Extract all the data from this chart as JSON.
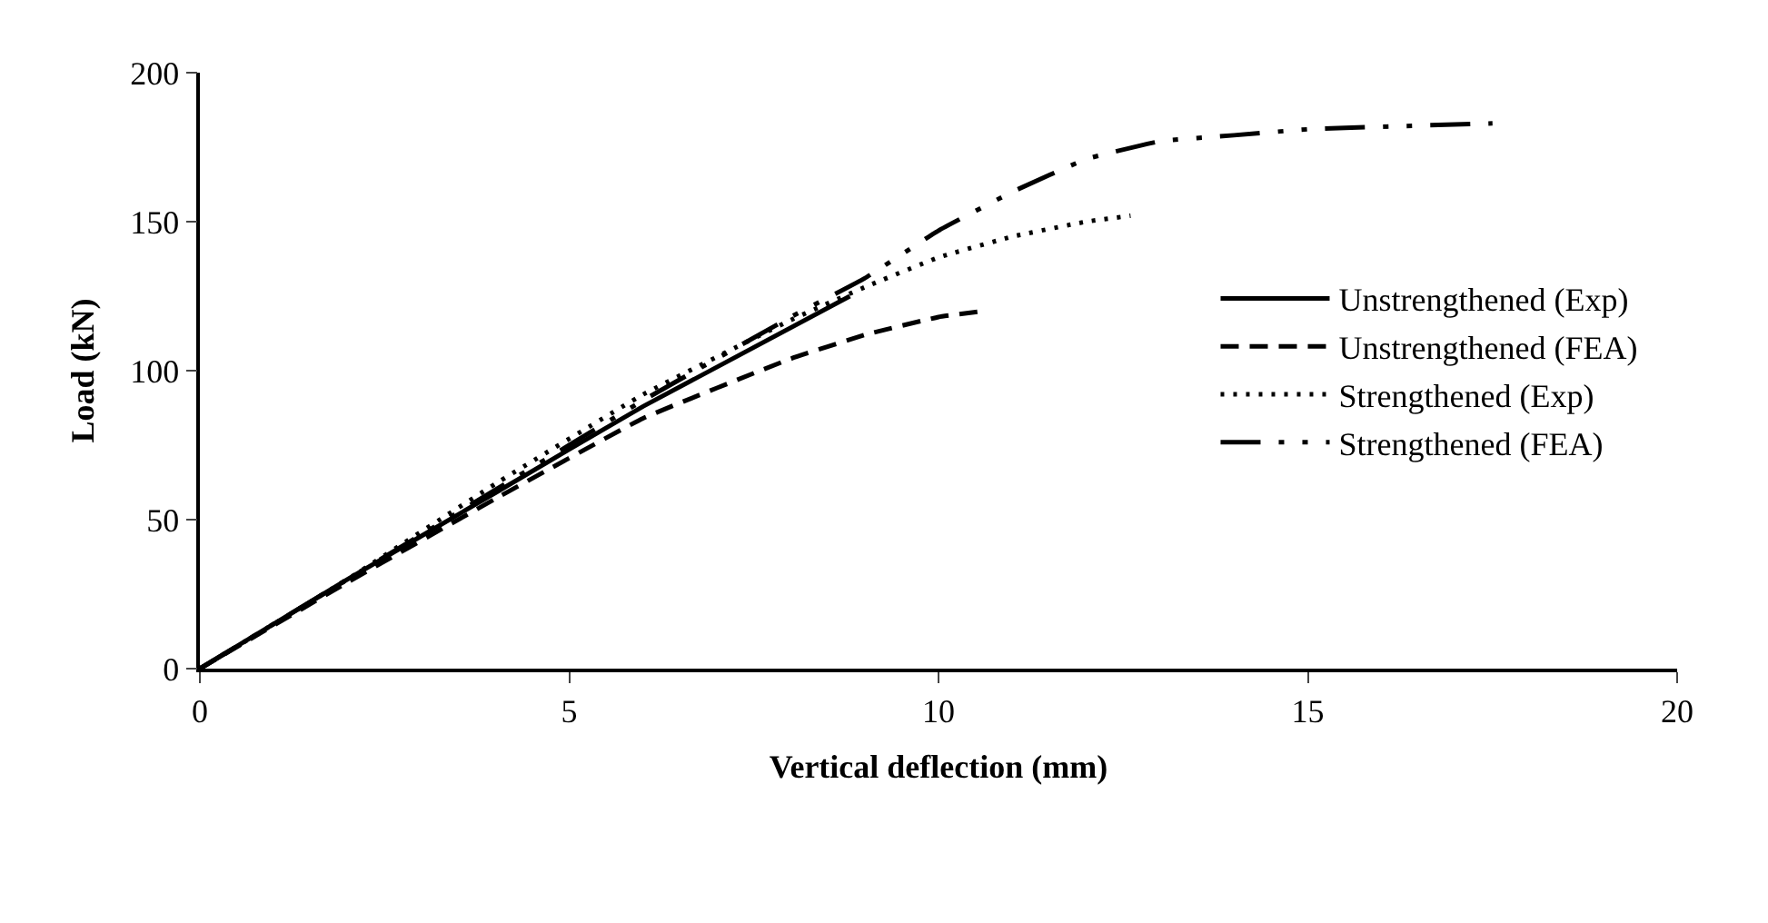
{
  "chart_data": {
    "type": "line",
    "xlabel": "Vertical deflection (mm)",
    "ylabel": "Load (kN)",
    "xlim": [
      0,
      20
    ],
    "xticks": [
      0,
      5,
      10,
      15,
      20
    ],
    "ylim": [
      0,
      200
    ],
    "yticks": [
      0,
      50,
      100,
      150,
      200
    ],
    "grid": false,
    "legend": "right",
    "marker": "none",
    "series": [
      {
        "name": "Unstrengthened (Exp)",
        "color": "#000000",
        "line_style": "solid",
        "x": [
          0,
          2,
          4,
          6,
          8.8
        ],
        "values": [
          0,
          30,
          59,
          88,
          125
        ]
      },
      {
        "name": "Unstrengthened (FEA)",
        "color": "#000000",
        "line_style": "dashed",
        "x": [
          0,
          2,
          4,
          6,
          8,
          9,
          10,
          10.6
        ],
        "values": [
          0,
          29,
          57,
          84,
          104,
          112,
          118,
          120
        ]
      },
      {
        "name": "Strengthened (Exp)",
        "color": "#000000",
        "line_style": "dotted",
        "x": [
          0,
          2,
          4,
          6,
          8,
          9,
          10,
          11,
          12,
          12.6
        ],
        "values": [
          0,
          30,
          62,
          92,
          117,
          128,
          138,
          145,
          150,
          152
        ]
      },
      {
        "name": "Strengthened (FEA)",
        "color": "#000000",
        "line_style": "dashdotdot",
        "x": [
          0,
          2,
          4,
          6,
          8,
          9,
          10,
          11,
          12,
          13,
          14,
          15,
          17.5
        ],
        "values": [
          0,
          30,
          60,
          90,
          118,
          131,
          147,
          160,
          171,
          177,
          179,
          181,
          183
        ]
      }
    ]
  }
}
